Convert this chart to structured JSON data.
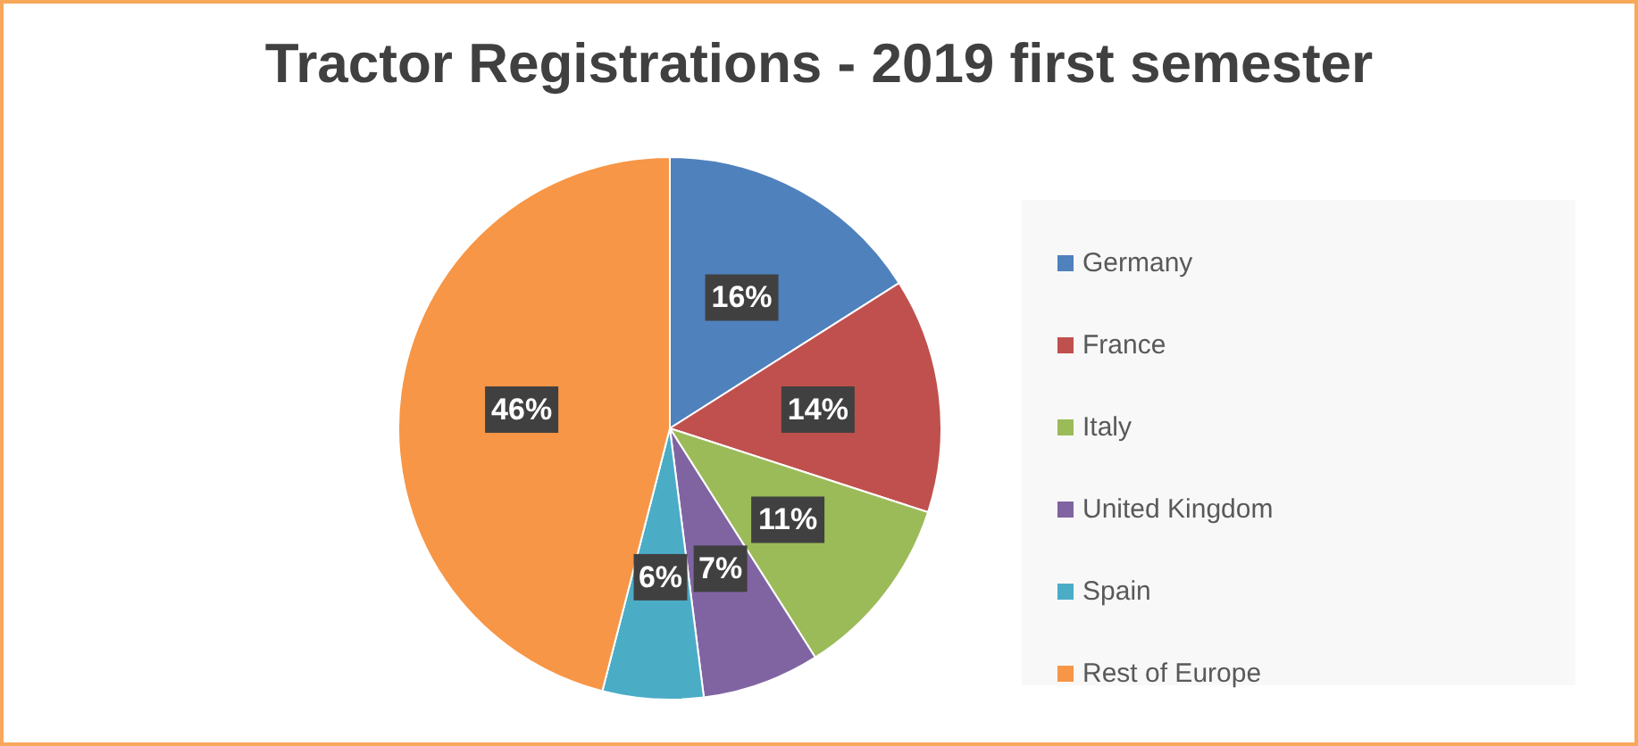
{
  "chart_data": {
    "type": "pie",
    "title": "Tractor Registrations - 2019 first semester",
    "categories": [
      "Germany",
      "France",
      "Italy",
      "United Kingdom",
      "Spain",
      "Rest of Europe"
    ],
    "values": [
      16,
      14,
      11,
      7,
      6,
      46
    ],
    "colors": [
      "#4f81bd",
      "#c0504d",
      "#9bbb59",
      "#8064a2",
      "#4bacc6",
      "#f79646"
    ],
    "value_labels": [
      "16%",
      "14%",
      "11%",
      "7%",
      "6%",
      "46%"
    ],
    "legend": "right"
  }
}
